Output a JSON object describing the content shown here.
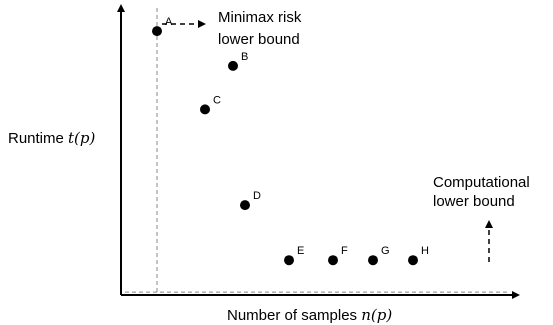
{
  "chart_data": {
    "type": "scatter",
    "xlabel": {
      "prefix": "Number of samples ",
      "math": "n(p)"
    },
    "ylabel": {
      "prefix": "Runtime ",
      "math": "t(p)"
    },
    "annotations": {
      "minimax_line1": "Minimax risk",
      "minimax_line2": "lower bound",
      "computational_line1": "Computational",
      "computational_line2": "lower bound"
    },
    "points": [
      {
        "label": "A",
        "x": 0.09,
        "y": 0.91
      },
      {
        "label": "B",
        "x": 0.28,
        "y": 0.79
      },
      {
        "label": "C",
        "x": 0.21,
        "y": 0.64
      },
      {
        "label": "D",
        "x": 0.31,
        "y": 0.31
      },
      {
        "label": "E",
        "x": 0.42,
        "y": 0.12
      },
      {
        "label": "F",
        "x": 0.53,
        "y": 0.12
      },
      {
        "label": "G",
        "x": 0.63,
        "y": 0.12
      },
      {
        "label": "H",
        "x": 0.73,
        "y": 0.12
      }
    ],
    "minimax_bound_x": 0.09,
    "computational_bound_y": 0.01
  }
}
